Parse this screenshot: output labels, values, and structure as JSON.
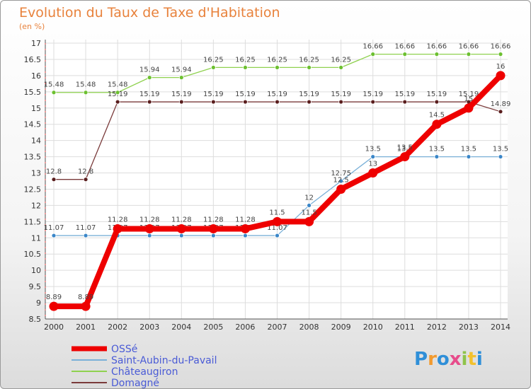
{
  "title": "Evolution du Taux de Taxe d'Habitation",
  "subtitle": "(en %)",
  "logo": "Proxiti",
  "chart_data": {
    "type": "line",
    "title": "Evolution du Taux de Taxe d'Habitation",
    "ylabel": "(en %)",
    "xlabel": "",
    "ylim": [
      8.5,
      17
    ],
    "grid": true,
    "x": [
      "2000",
      "2001",
      "2002",
      "2003",
      "2004",
      "2005",
      "2006",
      "2007",
      "2008",
      "2009",
      "2010",
      "2011",
      "2012",
      "2013",
      "2014"
    ],
    "yticks": [
      "8.5",
      "9",
      "9.5",
      "10",
      "10.5",
      "11",
      "11.5",
      "12",
      "12.5",
      "13",
      "13.5",
      "14",
      "14.5",
      "15",
      "15.5",
      "16",
      "16.5",
      "17"
    ],
    "series": [
      {
        "name": "Châteaugiron",
        "color": "#8fd14f",
        "dot": "#6cc030",
        "values": [
          15.48,
          15.48,
          15.48,
          15.94,
          15.94,
          16.25,
          16.25,
          16.25,
          16.25,
          16.25,
          16.66,
          16.66,
          16.66,
          16.66,
          16.66
        ],
        "labels": [
          "15.48",
          "15.48",
          "15.48",
          "15.94",
          "15.94",
          "16.25",
          "16.25",
          "16.25",
          "16.25",
          "16.25",
          "16.66",
          "16.66",
          "16.66",
          "16.66",
          "16.66"
        ]
      },
      {
        "name": "Domagné",
        "color": "#7a3a3a",
        "dot": "#5a1e1e",
        "values": [
          12.8,
          12.8,
          15.19,
          15.19,
          15.19,
          15.19,
          15.19,
          15.19,
          15.19,
          15.19,
          15.19,
          15.19,
          15.19,
          15.19,
          14.89
        ],
        "labels": [
          "12.8",
          "12.8",
          "15.19",
          "15.19",
          "15.19",
          "15.19",
          "15.19",
          "15.19",
          "15.19",
          "15.19",
          "15.19",
          "15.19",
          "15.19",
          "15.19",
          "14.89"
        ]
      },
      {
        "name": "Saint-Aubin-du-Pavail",
        "color": "#7ab0d8",
        "dot": "#3a86c8",
        "values": [
          11.07,
          11.07,
          11.07,
          11.07,
          11.07,
          11.07,
          11.07,
          11.07,
          12,
          12.75,
          13.5,
          13.5,
          13.5,
          13.5,
          13.5
        ],
        "labels": [
          "11.07",
          "11.07",
          "11.07",
          "11.07",
          "11.07",
          "11.07",
          "11.07",
          "11.07",
          "12",
          "12.75",
          "13.5",
          "13.5",
          "13.5",
          "13.5",
          "13.5"
        ]
      },
      {
        "name": "OSSé",
        "color": "#ee0000",
        "dot": "#ee0000",
        "values": [
          8.89,
          8.89,
          11.28,
          11.28,
          11.28,
          11.28,
          11.28,
          11.5,
          11.5,
          12.5,
          13,
          13.5,
          14.5,
          15,
          16
        ],
        "labels": [
          "8.89",
          "8.89",
          "11.28",
          "11.28",
          "11.28",
          "11.28",
          "11.28",
          "11.5",
          "11.5",
          "12.5",
          "13",
          "13.5",
          "14.5",
          "15",
          "16"
        ]
      }
    ],
    "legend": [
      "OSSé",
      "Saint-Aubin-du-Pavail",
      "Châteaugiron",
      "Domagné"
    ]
  }
}
